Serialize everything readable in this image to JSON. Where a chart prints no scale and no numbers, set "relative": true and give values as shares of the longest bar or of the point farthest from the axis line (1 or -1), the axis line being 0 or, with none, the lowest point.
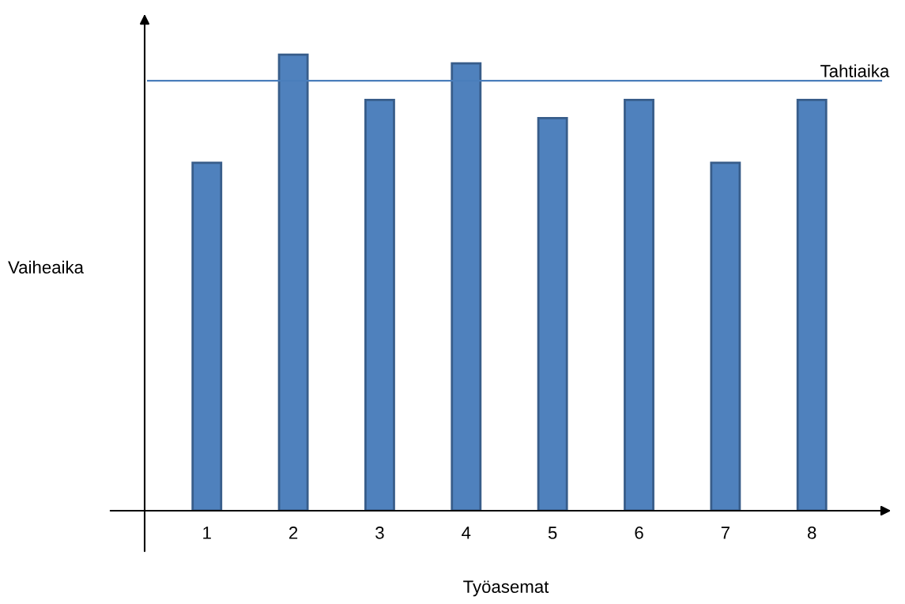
{
  "chart_data": {
    "type": "bar",
    "relative": true,
    "xlabel": "Työasemat",
    "ylabel": "Vaiheaika",
    "categories": [
      "1",
      "2",
      "3",
      "4",
      "5",
      "6",
      "7",
      "8"
    ],
    "values": [
      0.763,
      1,
      0.901,
      0.981,
      0.861,
      0.901,
      0.763,
      0.901
    ],
    "color": "#4f81bd",
    "ref_lines": [
      {
        "axis": "y",
        "value": 0.943,
        "label": "Tahtiaika",
        "color": "#4a7ebb"
      }
    ]
  }
}
